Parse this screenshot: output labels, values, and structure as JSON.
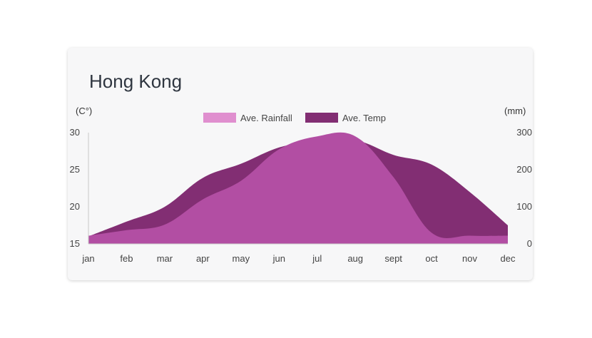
{
  "title": "Hong Kong",
  "colors": {
    "temp": "#822e73",
    "rainfall": "#b24ea3",
    "rainfall_legend": "#e08fcf",
    "axis": "#c8c8c8"
  },
  "chart_data": {
    "type": "area",
    "title": "Hong Kong",
    "categories": [
      "jan",
      "feb",
      "mar",
      "apr",
      "may",
      "jun",
      "jul",
      "aug",
      "sept",
      "oct",
      "nov",
      "dec"
    ],
    "y_left": {
      "unit_label": "(C°)",
      "ticks": [
        "30",
        "25",
        "20",
        "15"
      ],
      "min": 15,
      "max": 30
    },
    "y_right": {
      "unit_label": "(mm)",
      "ticks": [
        "300",
        "200",
        "100",
        "0"
      ],
      "min": 0,
      "max": 300
    },
    "series": [
      {
        "name": "Ave. Temp",
        "axis": "left",
        "color": "#822e73",
        "values": [
          16,
          18,
          20,
          23.9,
          25.8,
          28,
          28.9,
          29,
          27,
          25.7,
          22,
          17.5
        ]
      },
      {
        "name": "Ave. Rainfall",
        "axis": "right",
        "color": "#b24ea3",
        "values": [
          22,
          37,
          52,
          120,
          170,
          255,
          290,
          290,
          180,
          30,
          22,
          22
        ]
      }
    ],
    "legend_position": "top",
    "grid": false
  }
}
